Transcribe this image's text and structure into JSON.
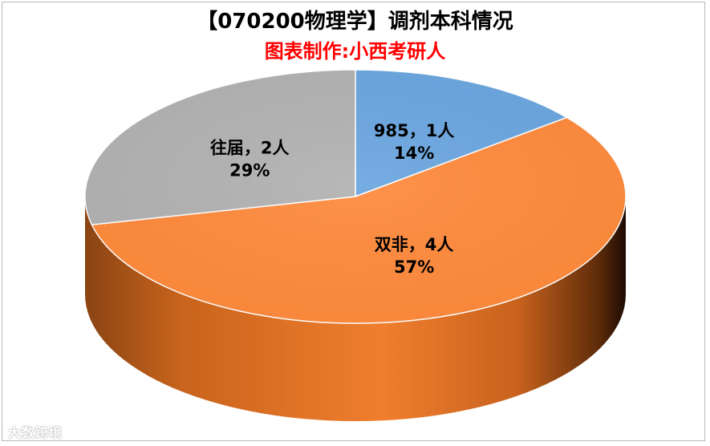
{
  "title": "【070200物理学】调剂本科情况",
  "subtitle": "图表制作:小西考研人",
  "watermark": "大数跨境",
  "chart_data": {
    "type": "pie",
    "style": "3d",
    "slices": [
      {
        "label": "985",
        "count": 1,
        "unit": "人",
        "percent": "14%",
        "color": "#6aa6e0"
      },
      {
        "label": "双非",
        "count": 4,
        "unit": "人",
        "percent": "57%",
        "color": "#ff8a3c"
      },
      {
        "label": "往届",
        "count": 2,
        "unit": "人",
        "percent": "29%",
        "color": "#b2b2b2"
      }
    ],
    "data_labels": [
      {
        "line1": "985，1人",
        "line2": "14%"
      },
      {
        "line1": "双非，4人",
        "line2": "57%"
      },
      {
        "line1": "往届，2人",
        "line2": "29%"
      }
    ]
  }
}
